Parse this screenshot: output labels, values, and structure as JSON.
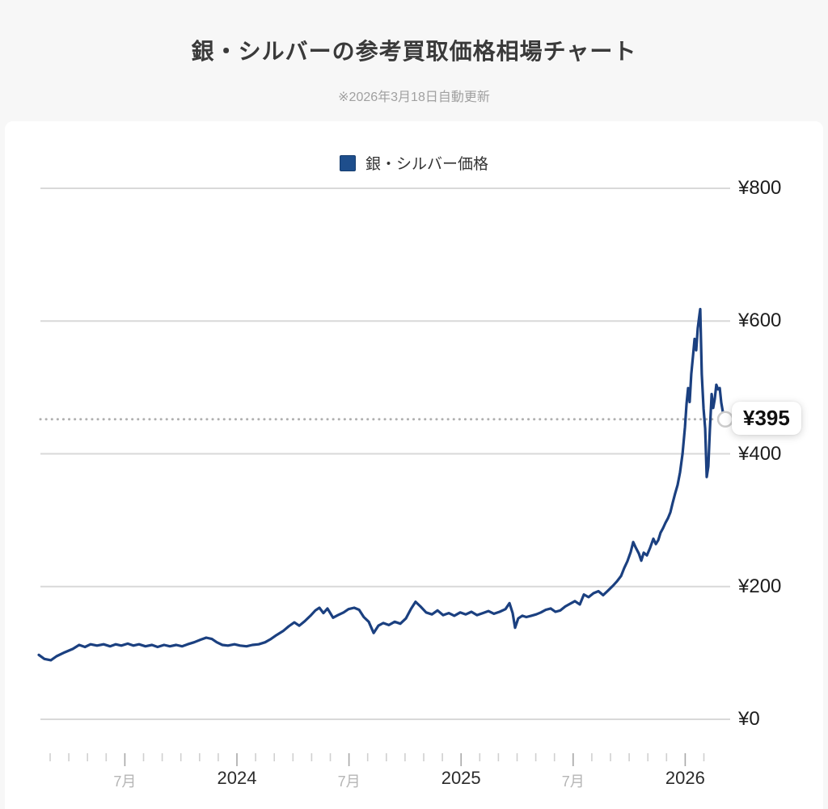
{
  "header": {
    "title": "銀・シルバーの参考買取価格相場チャート",
    "subtitle": "※2026年3月18日自動更新"
  },
  "legend": {
    "label": "銀・シルバー価格"
  },
  "colors": {
    "page_bg": "#f7f7f7",
    "card_bg": "#ffffff",
    "series_line": "#1b4080",
    "legend_swatch": "#1e4e8c",
    "legend_swatch_border": "#163d6f",
    "gridline": "#d9d9d9",
    "dotted_line": "#b0b0b0",
    "tick_minor": "#d0d0d0",
    "tick_major": "#a8a8a8",
    "marker_fill": "#ffffff",
    "marker_stroke": "#cccccc"
  },
  "chart_data": {
    "type": "line",
    "title": "銀・シルバーの参考買取価格相場チャート",
    "series_name": "銀・シルバー価格",
    "x_unit": "decimal year (2023-02 to 2026-03)",
    "y_unit": "JPY",
    "ylim": [
      0,
      800
    ],
    "grid": true,
    "legend_position": "top",
    "current_price_label": "¥395",
    "y_axis": {
      "ticks": [
        {
          "value": 800,
          "label": "¥800"
        },
        {
          "value": 600,
          "label": "¥600"
        },
        {
          "value": 400,
          "label": "¥400"
        },
        {
          "value": 200,
          "label": "¥200"
        },
        {
          "value": 0,
          "label": "¥0"
        }
      ]
    },
    "x_axis": {
      "labels": [
        {
          "t": 2023.5,
          "label": "7月",
          "major": false
        },
        {
          "t": 2024.0,
          "label": "2024",
          "major": true
        },
        {
          "t": 2024.5,
          "label": "7月",
          "major": false
        },
        {
          "t": 2025.0,
          "label": "2025",
          "major": true
        },
        {
          "t": 2025.5,
          "label": "7月",
          "major": false
        },
        {
          "t": 2026.0,
          "label": "2026",
          "major": true
        }
      ],
      "minor_ticks": {
        "start": 2023.1667,
        "step": 0.083333,
        "count": 36
      }
    },
    "points": [
      [
        2023.116,
        97
      ],
      [
        2023.141,
        91
      ],
      [
        2023.17,
        89
      ],
      [
        2023.195,
        95
      ],
      [
        2023.232,
        101
      ],
      [
        2023.268,
        106
      ],
      [
        2023.296,
        112
      ],
      [
        2023.322,
        109
      ],
      [
        2023.347,
        113
      ],
      [
        2023.376,
        111
      ],
      [
        2023.405,
        113
      ],
      [
        2023.434,
        110
      ],
      [
        2023.459,
        113
      ],
      [
        2023.484,
        111
      ],
      [
        2023.513,
        114
      ],
      [
        2023.538,
        111
      ],
      [
        2023.563,
        113
      ],
      [
        2023.592,
        110
      ],
      [
        2023.621,
        112
      ],
      [
        2023.646,
        109
      ],
      [
        2023.675,
        112
      ],
      [
        2023.701,
        110
      ],
      [
        2023.729,
        112
      ],
      [
        2023.755,
        110
      ],
      [
        2023.78,
        113
      ],
      [
        2023.809,
        116
      ],
      [
        2023.838,
        120
      ],
      [
        2023.863,
        123
      ],
      [
        2023.888,
        121
      ],
      [
        2023.91,
        116
      ],
      [
        2023.935,
        112
      ],
      [
        2023.96,
        111
      ],
      [
        2023.989,
        113
      ],
      [
        2024.014,
        111
      ],
      [
        2024.043,
        110
      ],
      [
        2024.069,
        112
      ],
      [
        2024.097,
        113
      ],
      [
        2024.126,
        116
      ],
      [
        2024.152,
        121
      ],
      [
        2024.177,
        127
      ],
      [
        2024.206,
        133
      ],
      [
        2024.231,
        140
      ],
      [
        2024.256,
        146
      ],
      [
        2024.278,
        141
      ],
      [
        2024.303,
        148
      ],
      [
        2024.328,
        156
      ],
      [
        2024.35,
        164
      ],
      [
        2024.368,
        168
      ],
      [
        2024.386,
        160
      ],
      [
        2024.404,
        167
      ],
      [
        2024.429,
        153
      ],
      [
        2024.451,
        157
      ],
      [
        2024.476,
        161
      ],
      [
        2024.498,
        166
      ],
      [
        2024.523,
        168
      ],
      [
        2024.545,
        165
      ],
      [
        2024.566,
        154
      ],
      [
        2024.588,
        147
      ],
      [
        2024.61,
        130
      ],
      [
        2024.631,
        141
      ],
      [
        2024.653,
        145
      ],
      [
        2024.678,
        142
      ],
      [
        2024.704,
        147
      ],
      [
        2024.729,
        144
      ],
      [
        2024.754,
        152
      ],
      [
        2024.776,
        166
      ],
      [
        2024.797,
        177
      ],
      [
        2024.819,
        170
      ],
      [
        2024.844,
        161
      ],
      [
        2024.87,
        158
      ],
      [
        2024.895,
        164
      ],
      [
        2024.92,
        157
      ],
      [
        2024.945,
        160
      ],
      [
        2024.97,
        156
      ],
      [
        2024.996,
        161
      ],
      [
        2025.021,
        158
      ],
      [
        2025.046,
        162
      ],
      [
        2025.071,
        157
      ],
      [
        2025.097,
        160
      ],
      [
        2025.122,
        163
      ],
      [
        2025.147,
        159
      ],
      [
        2025.172,
        162
      ],
      [
        2025.198,
        166
      ],
      [
        2025.216,
        175
      ],
      [
        2025.23,
        160
      ],
      [
        2025.241,
        138
      ],
      [
        2025.255,
        152
      ],
      [
        2025.273,
        156
      ],
      [
        2025.291,
        154
      ],
      [
        2025.313,
        156
      ],
      [
        2025.335,
        158
      ],
      [
        2025.356,
        161
      ],
      [
        2025.378,
        165
      ],
      [
        2025.4,
        167
      ],
      [
        2025.421,
        162
      ],
      [
        2025.443,
        164
      ],
      [
        2025.465,
        170
      ],
      [
        2025.486,
        174
      ],
      [
        2025.508,
        178
      ],
      [
        2025.53,
        173
      ],
      [
        2025.548,
        188
      ],
      [
        2025.569,
        184
      ],
      [
        2025.591,
        190
      ],
      [
        2025.613,
        193
      ],
      [
        2025.634,
        187
      ],
      [
        2025.656,
        194
      ],
      [
        2025.677,
        201
      ],
      [
        2025.696,
        208
      ],
      [
        2025.714,
        216
      ],
      [
        2025.728,
        228
      ],
      [
        2025.742,
        238
      ],
      [
        2025.757,
        252
      ],
      [
        2025.768,
        267
      ],
      [
        2025.779,
        259
      ],
      [
        2025.793,
        250
      ],
      [
        2025.804,
        239
      ],
      [
        2025.815,
        251
      ],
      [
        2025.829,
        247
      ],
      [
        2025.843,
        258
      ],
      [
        2025.858,
        272
      ],
      [
        2025.869,
        264
      ],
      [
        2025.88,
        270
      ],
      [
        2025.89,
        281
      ],
      [
        2025.901,
        288
      ],
      [
        2025.912,
        296
      ],
      [
        2025.923,
        303
      ],
      [
        2025.934,
        312
      ],
      [
        2025.944,
        326
      ],
      [
        2025.955,
        340
      ],
      [
        2025.966,
        353
      ],
      [
        2025.977,
        372
      ],
      [
        2025.988,
        400
      ],
      [
        2025.999,
        440
      ],
      [
        2026.006,
        476
      ],
      [
        2026.013,
        499
      ],
      [
        2026.02,
        478
      ],
      [
        2026.027,
        520
      ],
      [
        2026.035,
        548
      ],
      [
        2026.042,
        573
      ],
      [
        2026.049,
        556
      ],
      [
        2026.056,
        589
      ],
      [
        2026.064,
        610
      ],
      [
        2026.067,
        618
      ],
      [
        2026.074,
        520
      ],
      [
        2026.082,
        468
      ],
      [
        2026.089,
        438
      ],
      [
        2026.096,
        365
      ],
      [
        2026.103,
        381
      ],
      [
        2026.11,
        436
      ],
      [
        2026.118,
        490
      ],
      [
        2026.125,
        469
      ],
      [
        2026.132,
        483
      ],
      [
        2026.139,
        504
      ],
      [
        2026.147,
        497
      ],
      [
        2026.154,
        499
      ],
      [
        2026.161,
        477
      ],
      [
        2026.168,
        463
      ],
      [
        2026.179,
        452
      ]
    ]
  }
}
